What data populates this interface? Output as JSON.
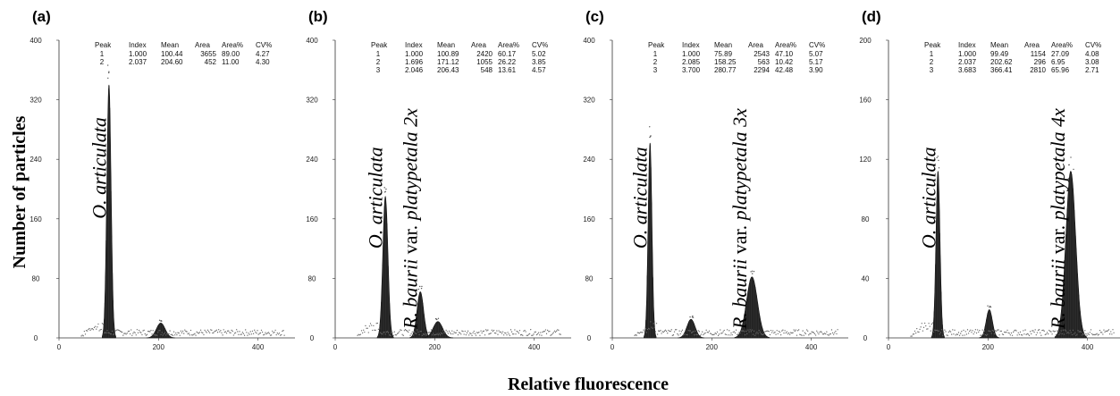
{
  "ylabel": "Number of particles",
  "xlabel": "Relative fluorescence",
  "table_headers": [
    "Peak",
    "Index",
    "Mean",
    "Area",
    "Area%",
    "CV%"
  ],
  "chart_data": [
    {
      "panel": "(a)",
      "type": "histogram",
      "xlim": [
        0,
        460
      ],
      "ylim": [
        0,
        400
      ],
      "xticks": [
        0,
        200,
        400
      ],
      "yticks": [
        0,
        80,
        160,
        240,
        320,
        400
      ],
      "peaks": [
        {
          "peak": "1",
          "index": "1.000",
          "mean": "100.44",
          "area": "3655",
          "area_pct": "89.00",
          "cv": "4.27",
          "height": 340
        },
        {
          "peak": "2",
          "index": "2.037",
          "mean": "204.60",
          "area": "452",
          "area_pct": "11.00",
          "cv": "4.30",
          "height": 20
        }
      ],
      "labels": [
        {
          "parts": [
            {
              "text": "O. articulata",
              "italic": true
            }
          ],
          "x": 80,
          "y": 160
        }
      ]
    },
    {
      "panel": "(b)",
      "type": "histogram",
      "xlim": [
        0,
        460
      ],
      "ylim": [
        0,
        400
      ],
      "xticks": [
        0,
        200,
        400
      ],
      "yticks": [
        0,
        80,
        160,
        240,
        320,
        400
      ],
      "peaks": [
        {
          "peak": "1",
          "index": "1.000",
          "mean": "100.89",
          "area": "2420",
          "area_pct": "60.17",
          "cv": "5.02",
          "height": 190
        },
        {
          "peak": "2",
          "index": "1.696",
          "mean": "171.12",
          "area": "1055",
          "area_pct": "26.22",
          "cv": "3.85",
          "height": 62
        },
        {
          "peak": "3",
          "index": "2.046",
          "mean": "206.43",
          "area": "548",
          "area_pct": "13.61",
          "cv": "4.57",
          "height": 22
        }
      ],
      "labels": [
        {
          "parts": [
            {
              "text": "O. articulata",
              "italic": true
            }
          ],
          "x": 80,
          "y": 120
        },
        {
          "parts": [
            {
              "text": "R. baurii",
              "italic": true
            },
            {
              "text": " var. ",
              "italic": false
            },
            {
              "text": "platypetala 2x",
              "italic": true
            }
          ],
          "x": 150,
          "y": 12
        }
      ]
    },
    {
      "panel": "(c)",
      "type": "histogram",
      "xlim": [
        0,
        460
      ],
      "ylim": [
        0,
        400
      ],
      "xticks": [
        0,
        200,
        400
      ],
      "yticks": [
        0,
        80,
        160,
        240,
        320,
        400
      ],
      "peaks": [
        {
          "peak": "1",
          "index": "1.000",
          "mean": "75.89",
          "area": "2543",
          "area_pct": "47.10",
          "cv": "5.07",
          "height": 262
        },
        {
          "peak": "2",
          "index": "2.085",
          "mean": "158.25",
          "area": "563",
          "area_pct": "10.42",
          "cv": "5.17",
          "height": 25
        },
        {
          "peak": "3",
          "index": "3.700",
          "mean": "280.77",
          "area": "2294",
          "area_pct": "42.48",
          "cv": "3.90",
          "height": 82
        }
      ],
      "labels": [
        {
          "parts": [
            {
              "text": "O. articulata",
              "italic": true
            }
          ],
          "x": 55,
          "y": 120
        },
        {
          "parts": [
            {
              "text": "R. baurii",
              "italic": true
            },
            {
              "text": " var. ",
              "italic": false
            },
            {
              "text": "platypetala 3x",
              "italic": true
            }
          ],
          "x": 255,
          "y": 12
        }
      ]
    },
    {
      "panel": "(d)",
      "type": "histogram",
      "xlim": [
        0,
        460
      ],
      "ylim": [
        0,
        200
      ],
      "xticks": [
        0,
        200,
        400
      ],
      "yticks": [
        0,
        40,
        80,
        120,
        160,
        200
      ],
      "peaks": [
        {
          "peak": "1",
          "index": "1.000",
          "mean": "99.49",
          "area": "1154",
          "area_pct": "27.09",
          "cv": "4.08",
          "height": 112
        },
        {
          "peak": "2",
          "index": "2.037",
          "mean": "202.62",
          "area": "296",
          "area_pct": "6.95",
          "cv": "3.08",
          "height": 19
        },
        {
          "peak": "3",
          "index": "3.683",
          "mean": "366.41",
          "area": "2810",
          "area_pct": "65.96",
          "cv": "2.71",
          "height": 112
        }
      ],
      "labels": [
        {
          "parts": [
            {
              "text": "O. articulata",
              "italic": true
            }
          ],
          "x": 80,
          "y": 60
        },
        {
          "parts": [
            {
              "text": "R. baurii",
              "italic": true
            },
            {
              "text": " var. ",
              "italic": false
            },
            {
              "text": "platypetala 4x",
              "italic": true
            }
          ],
          "x": 340,
          "y": 6
        }
      ]
    }
  ]
}
